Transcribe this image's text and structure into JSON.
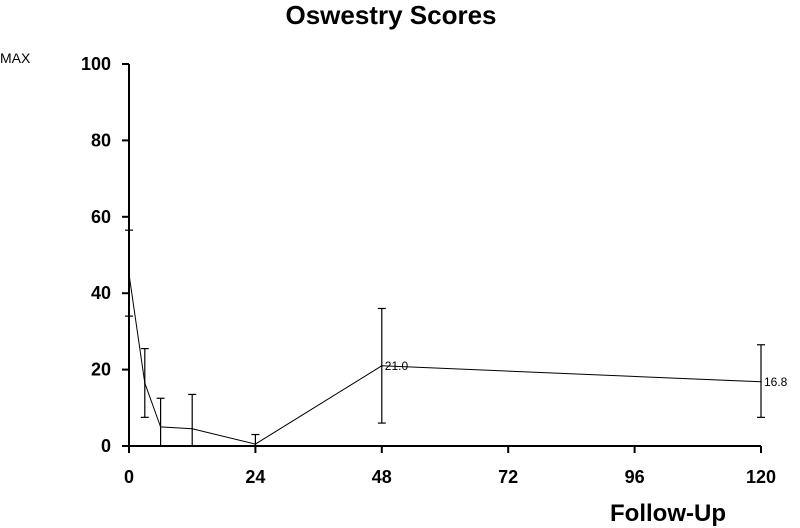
{
  "chart_data": {
    "type": "line",
    "title": "Oswestry Scores",
    "ylabel": "MAX",
    "xlabel": "Follow-Up",
    "x_ticks": [
      0,
      24,
      48,
      72,
      96,
      120
    ],
    "y_ticks": [
      0,
      20,
      40,
      60,
      80,
      100
    ],
    "xlim": [
      0,
      120
    ],
    "ylim": [
      0,
      100
    ],
    "grid": false,
    "series": [
      {
        "x": [
          0,
          3,
          6,
          12,
          24,
          48,
          120
        ],
        "y": [
          45,
          16.5,
          5,
          4.5,
          0.5,
          21.0,
          16.8
        ],
        "err_low": [
          34,
          7.5,
          0,
          0,
          0,
          6,
          7.5
        ],
        "err_high": [
          56.5,
          25.5,
          12.5,
          13.5,
          3,
          36,
          26.5
        ]
      }
    ],
    "annotations": [
      {
        "x": 48,
        "y": 21.0,
        "text": "21.0"
      },
      {
        "x": 120,
        "y": 16.8,
        "text": "16.8"
      }
    ]
  }
}
